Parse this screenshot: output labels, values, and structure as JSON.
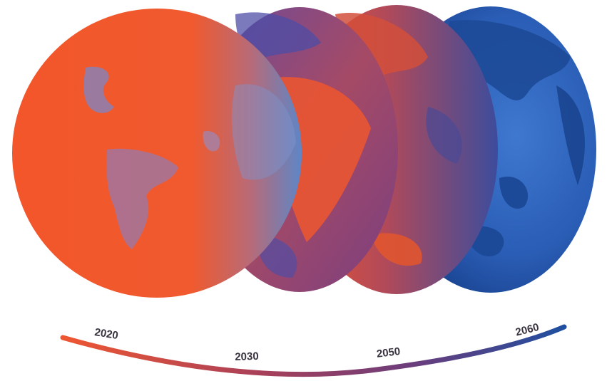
{
  "timeline": {
    "years": [
      {
        "label": "2020"
      },
      {
        "label": "2030"
      },
      {
        "label": "2050"
      },
      {
        "label": "2060"
      }
    ]
  },
  "colors": {
    "hot": "#f2562a",
    "cool": "#1f4fa0",
    "mid": "#7a3e6e",
    "text": "#3a3340",
    "background": "#ffffff"
  },
  "icons": {
    "globe": "earth-globe"
  }
}
